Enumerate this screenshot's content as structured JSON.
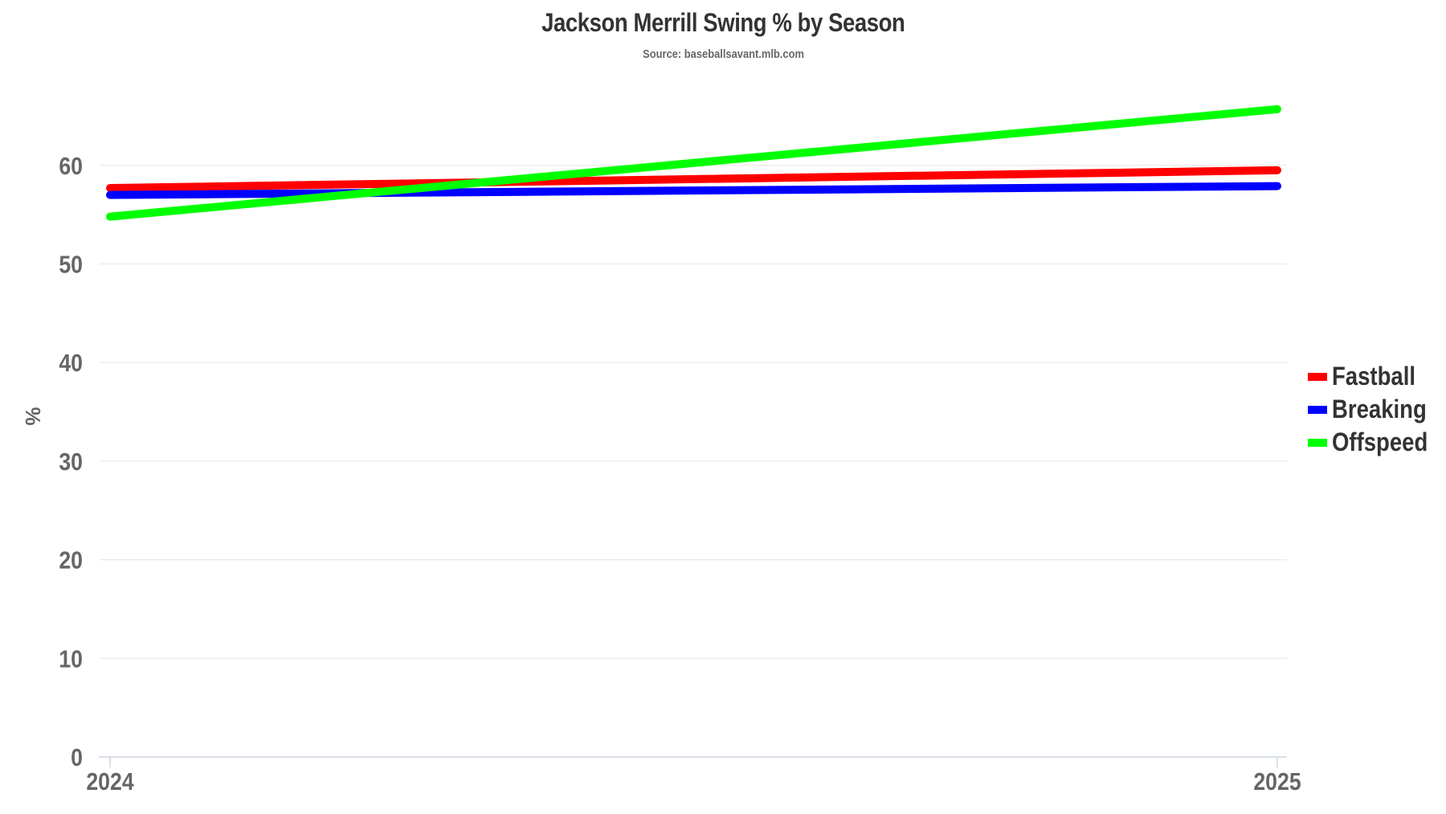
{
  "chart_data": {
    "type": "line",
    "title": "Jackson Merrill Swing % by Season",
    "subtitle": "Source: baseballsavant.mlb.com",
    "xlabel": "",
    "ylabel": "%",
    "x": [
      "2024",
      "2025"
    ],
    "categories": [
      "2024",
      "2025"
    ],
    "ylim": [
      0,
      70
    ],
    "yticks": [
      0,
      10,
      20,
      30,
      40,
      50,
      60
    ],
    "grid": true,
    "legend_position": "right",
    "series": [
      {
        "name": "Fastball",
        "color": "#ff0000",
        "values": [
          57.7,
          59.5
        ]
      },
      {
        "name": "Breaking",
        "color": "#0000ff",
        "values": [
          57.0,
          57.9
        ]
      },
      {
        "name": "Offspeed",
        "color": "#00ff00",
        "values": [
          54.8,
          65.7
        ]
      }
    ]
  },
  "header": {
    "title": "Jackson Merrill Swing % by Season",
    "subtitle": "Source: baseballsavant.mlb.com"
  },
  "legend": {
    "items": [
      {
        "label": "Fastball",
        "color": "#ff0000"
      },
      {
        "label": "Breaking",
        "color": "#0000ff"
      },
      {
        "label": "Offspeed",
        "color": "#00ff00"
      }
    ]
  },
  "axes": {
    "y_label": "%",
    "y_ticks": [
      "0",
      "10",
      "20",
      "30",
      "40",
      "50",
      "60"
    ],
    "x_ticks": [
      "2024",
      "2025"
    ]
  }
}
